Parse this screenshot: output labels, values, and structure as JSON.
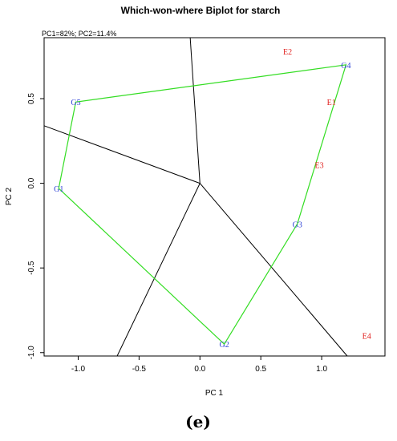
{
  "chart_data": {
    "type": "scatter",
    "title": "Which-won-where Biplot for starch",
    "subtitle": "PC1=82%; PC2=11.4%",
    "xlabel": "PC 1",
    "ylabel": "PC 2",
    "xlim": [
      -1.28,
      1.52
    ],
    "ylim": [
      -1.02,
      0.86
    ],
    "xticks": [
      -1.0,
      -0.5,
      0.0,
      0.5,
      1.0
    ],
    "xtick_labels": [
      "-1.0",
      "-0.5",
      "0.0",
      "0.5",
      "1.0"
    ],
    "yticks": [
      -1.0,
      -0.5,
      0.0,
      0.5
    ],
    "ytick_labels": [
      "-1.0",
      "-0.5",
      "0.0",
      "0.5"
    ],
    "genotypes": [
      {
        "label": "G1",
        "x": -1.16,
        "y": -0.03
      },
      {
        "label": "G2",
        "x": 0.2,
        "y": -0.95
      },
      {
        "label": "G3",
        "x": 0.8,
        "y": -0.24
      },
      {
        "label": "G4",
        "x": 1.2,
        "y": 0.7
      },
      {
        "label": "G5",
        "x": -1.02,
        "y": 0.48
      }
    ],
    "environments": [
      {
        "label": "E1",
        "x": 1.08,
        "y": 0.48
      },
      {
        "label": "E2",
        "x": 0.72,
        "y": 0.78
      },
      {
        "label": "E3",
        "x": 0.98,
        "y": 0.11
      },
      {
        "label": "E4",
        "x": 1.37,
        "y": -0.9
      }
    ],
    "polygon": [
      "G4",
      "G3",
      "G2",
      "G1",
      "G5"
    ],
    "origin": [
      0.0,
      0.0
    ],
    "sector_rays": [
      {
        "from": [
          0.0,
          0.0
        ],
        "to": [
          -0.08,
          0.86
        ]
      },
      {
        "from": [
          0.0,
          0.0
        ],
        "to": [
          -1.28,
          0.34
        ]
      },
      {
        "from": [
          0.0,
          0.0
        ],
        "to": [
          -0.68,
          -1.02
        ]
      },
      {
        "from": [
          0.0,
          0.0
        ],
        "to": [
          1.21,
          -1.02
        ]
      }
    ],
    "colors": {
      "polygon": "#33dd22",
      "rays": "#000000",
      "genotype": "#2b3fd6",
      "environment": "#e0201e"
    },
    "grid": false,
    "panel_label": "(e)"
  }
}
